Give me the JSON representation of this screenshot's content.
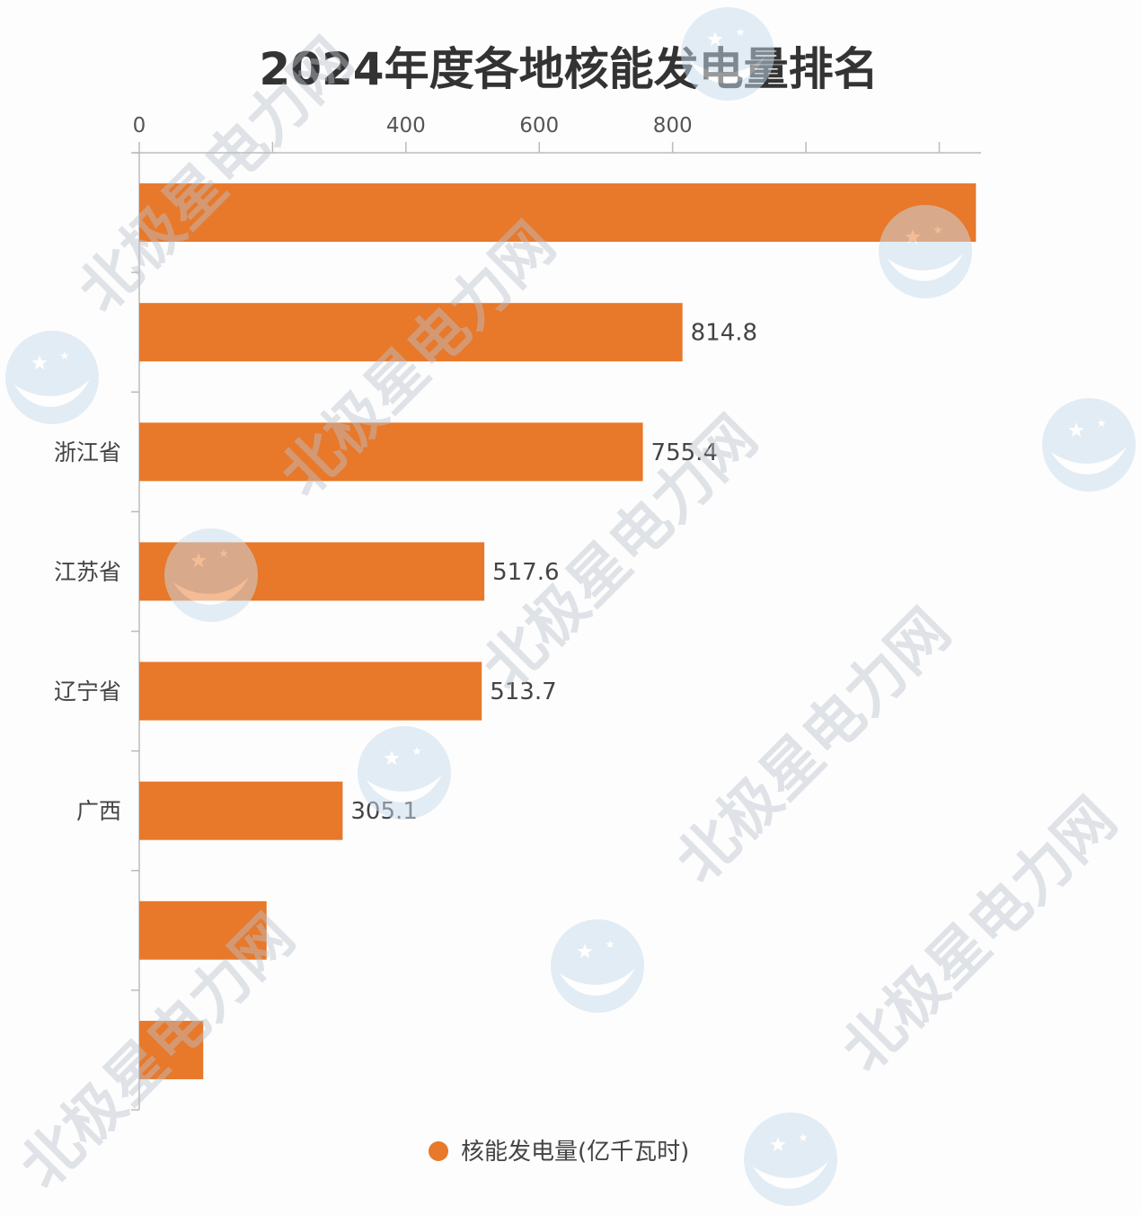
{
  "chart_data": {
    "type": "bar",
    "orientation": "horizontal",
    "title": "2024年度各地核能发电量排名",
    "xlabel": "",
    "ylabel": "",
    "x_axis_position": "top",
    "xlim": [
      0,
      1260
    ],
    "xticks": [
      0,
      200,
      400,
      600,
      800,
      1000,
      1200
    ],
    "xtick_labels": [
      "0",
      "",
      "400",
      "600",
      "800",
      "",
      ""
    ],
    "grid": false,
    "categories": [
      "",
      "",
      "浙江省",
      "江苏省",
      "辽宁省",
      "广西",
      "",
      ""
    ],
    "series": [
      {
        "name": "核能发电量(亿千瓦时)",
        "values": [
          1255,
          814.8,
          755.4,
          517.6,
          513.7,
          305.1,
          191,
          96
        ],
        "data_labels": [
          "",
          "814.8",
          "755.4",
          "517.6",
          "513.7",
          "305.1",
          "",
          ""
        ],
        "color": "#E8782A"
      }
    ],
    "legend": {
      "position": "bottom-center"
    }
  },
  "watermark": {
    "text": "北极星电力网",
    "logo_icon": "star-moon-logo-icon"
  },
  "colors": {
    "bar": "#E8782A",
    "title": "#333333",
    "text": "#444444",
    "axis": "#BBBBBB",
    "watermark": "#BCC3CB",
    "watermark_logo": "#C9DCEC"
  }
}
